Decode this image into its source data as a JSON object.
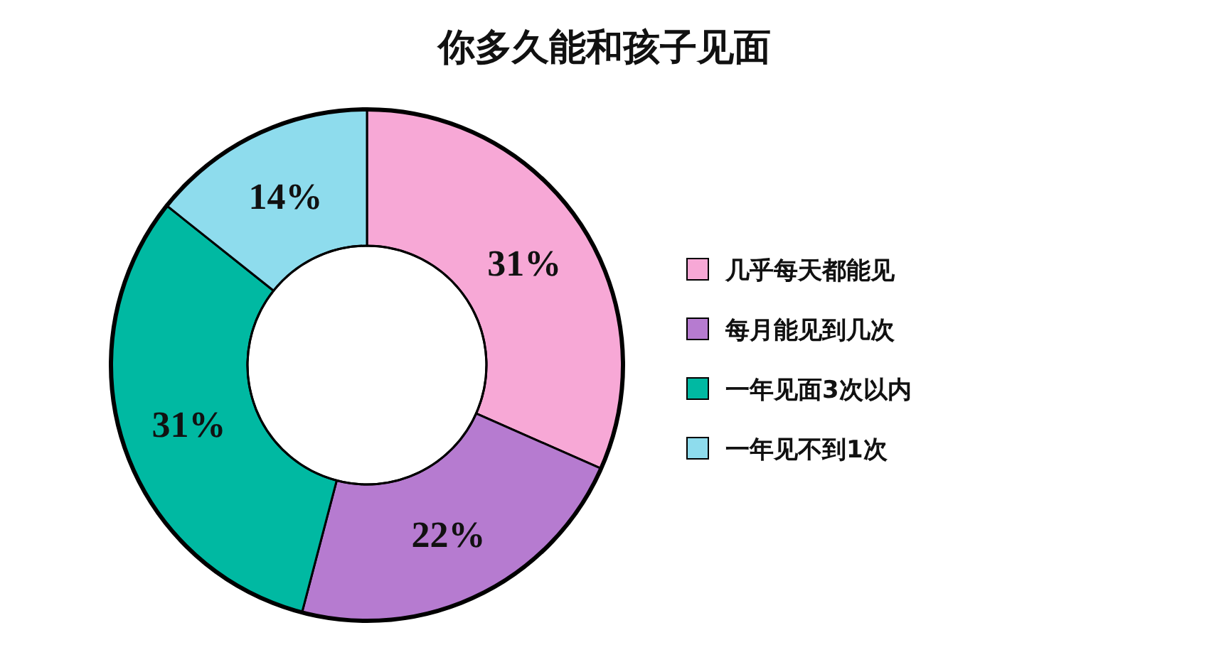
{
  "chart_data": {
    "type": "donut",
    "title": "你多久能和孩子见面",
    "categories": [
      "几乎每天都能见",
      "每月能见到几次",
      "一年见面3次以内",
      "一年见不到1次"
    ],
    "values": [
      31,
      22,
      31,
      14
    ],
    "colors": [
      "#f7a8d6",
      "#b67bd0",
      "#00b9a2",
      "#8edced"
    ],
    "value_labels": [
      "31%",
      "22%",
      "31%",
      "14%"
    ],
    "legend": "right"
  }
}
